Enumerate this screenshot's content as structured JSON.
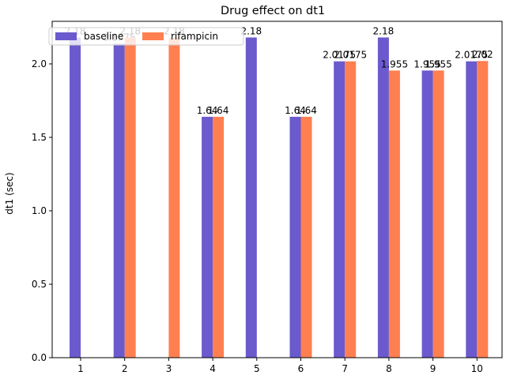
{
  "chart_data": {
    "type": "bar",
    "title": "Drug effect on dt1",
    "xlabel": "",
    "ylabel": "dt1 (sec)",
    "categories": [
      "1",
      "2",
      "3",
      "4",
      "5",
      "6",
      "7",
      "8",
      "9",
      "10"
    ],
    "series": [
      {
        "name": "baseline",
        "color": "#6a5acd",
        "values": [
          2.18,
          2.1375,
          null,
          1.64,
          2.18,
          1.64,
          2.0175,
          2.18,
          1.955,
          2.0175
        ],
        "labels": [
          "2.18",
          "2.1375",
          "",
          "1.64",
          "2.18",
          "1.64",
          "2.0175",
          "2.18",
          "1.955",
          "2.0175"
        ]
      },
      {
        "name": "rifampicin",
        "color": "#ff7f50",
        "values": [
          null,
          2.18,
          2.18,
          1.64,
          null,
          1.64,
          2.0175,
          1.955,
          1.955,
          2.02
        ],
        "labels": [
          "",
          "2.18",
          "2.18",
          "1.64",
          "",
          "1.64",
          "2.0175",
          "1.955",
          "1.955",
          "2.02"
        ]
      }
    ],
    "ylim": [
      0,
      2.29
    ],
    "yticks": [
      "0.0",
      "0.5",
      "1.0",
      "1.5",
      "2.0"
    ],
    "legend": "top-left",
    "grid": false
  }
}
